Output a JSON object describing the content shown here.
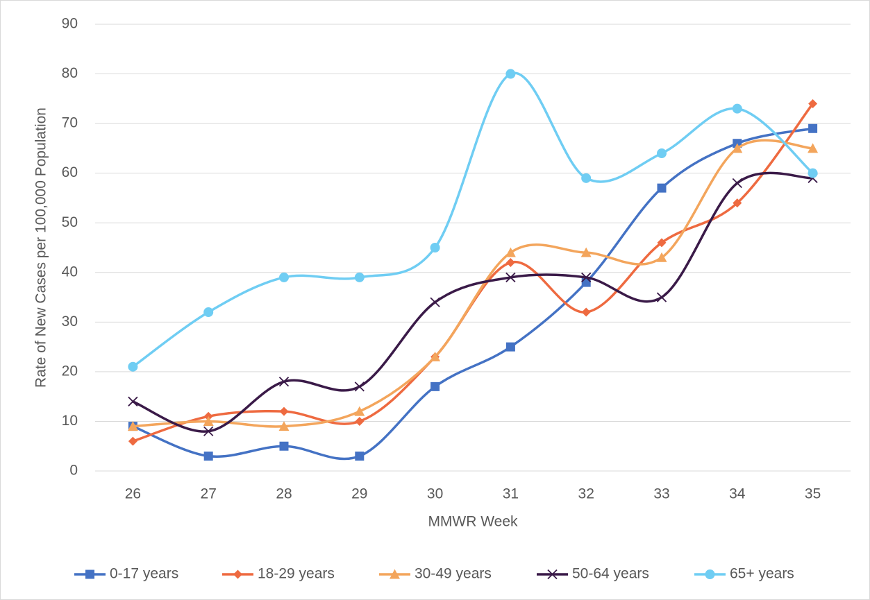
{
  "chart_data": {
    "type": "line",
    "x_label": "MMWR Week",
    "y_label": "Rate of New Cases per 100,000 Population",
    "categories": [
      26,
      27,
      28,
      29,
      30,
      31,
      32,
      33,
      34,
      35
    ],
    "ylim": [
      0,
      90
    ],
    "yticks": [
      0,
      10,
      20,
      30,
      40,
      50,
      60,
      70,
      80,
      90
    ],
    "grid": true,
    "smooth": true,
    "legend": "bottom",
    "series": [
      {
        "name": "0-17 years",
        "color": "#4472c4",
        "marker": "square",
        "values": [
          9,
          3,
          5,
          3,
          17,
          25,
          38,
          57,
          66,
          69
        ]
      },
      {
        "name": "18-29 years",
        "color": "#ee6a40",
        "marker": "diamond",
        "values": [
          6,
          11,
          12,
          10,
          23,
          42,
          32,
          46,
          54,
          74
        ]
      },
      {
        "name": "30-49 years",
        "color": "#f3a55c",
        "marker": "triangle",
        "values": [
          9,
          10,
          9,
          12,
          23,
          44,
          44,
          43,
          65,
          65
        ]
      },
      {
        "name": "50-64 years",
        "color": "#3a1a48",
        "marker": "cross",
        "values": [
          14,
          8,
          18,
          17,
          34,
          39,
          39,
          35,
          58,
          59
        ]
      },
      {
        "name": "65+ years",
        "color": "#6fcdf3",
        "marker": "circle",
        "values": [
          21,
          32,
          39,
          39,
          45,
          80,
          59,
          64,
          73,
          60
        ]
      }
    ]
  }
}
